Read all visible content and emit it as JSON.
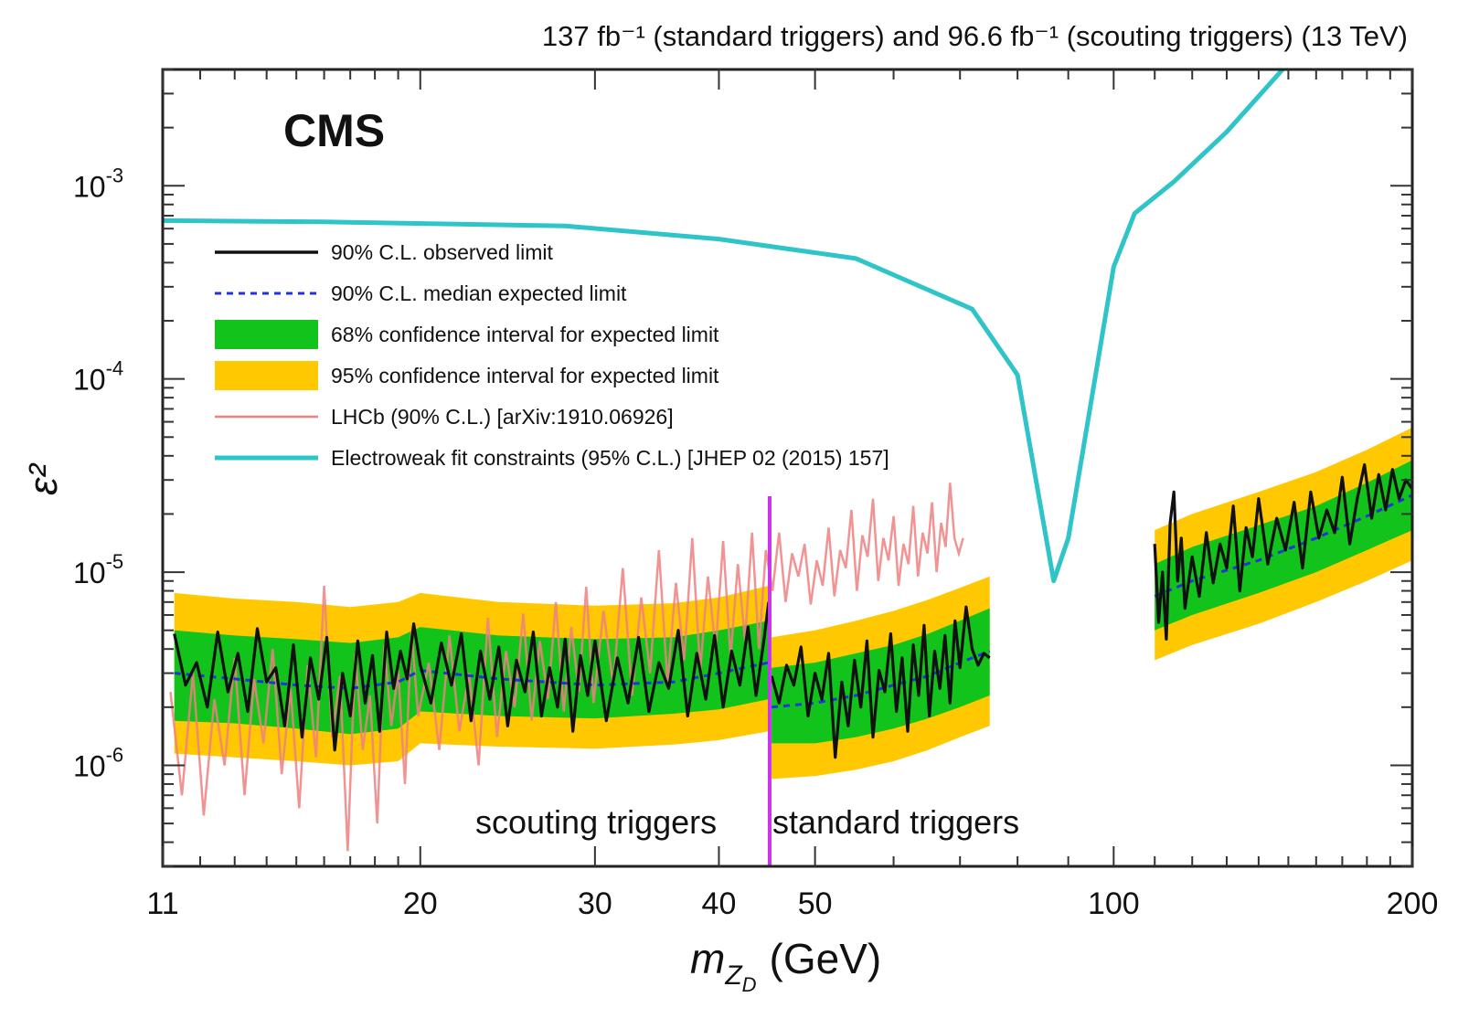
{
  "chart_data": {
    "type": "line",
    "title": "137 fb⁻¹ (standard triggers) and 96.6 fb⁻¹ (scouting triggers) (13 TeV)",
    "experiment_label": "CMS",
    "xlabel": "m_ZD (GeV)",
    "xlabel_parts": {
      "main": "m",
      "sub": "Z",
      "subsub": "D",
      "unit": "(GeV)"
    },
    "ylabel": "ε²",
    "x_scale": "log",
    "y_scale": "log",
    "xlim": [
      11,
      200
    ],
    "ylim": [
      3e-07,
      0.004
    ],
    "x_ticks": [
      11,
      20,
      30,
      40,
      50,
      100,
      200
    ],
    "x_tick_labels": [
      "11",
      "20",
      "30",
      "40",
      "50",
      "100",
      "200"
    ],
    "y_ticks": [
      1e-06,
      1e-05,
      0.0001,
      0.001
    ],
    "y_tick_labels": [
      {
        "base": "10",
        "exp": "-6"
      },
      {
        "base": "10",
        "exp": "-5"
      },
      {
        "base": "10",
        "exp": "-4"
      },
      {
        "base": "10",
        "exp": "-3"
      }
    ],
    "divider": {
      "x": 45,
      "color": "#cc33ee"
    },
    "region_labels": {
      "left": "scouting triggers",
      "right": "standard triggers"
    },
    "legend_position": "upper-left",
    "legend": [
      {
        "label": "90% C.L. observed limit",
        "kind": "line",
        "color": "#111111"
      },
      {
        "label": "90% C.L. median expected limit",
        "kind": "dashed",
        "color": "#2233dd"
      },
      {
        "label": "68% confidence interval for expected limit",
        "kind": "band",
        "color": "#11c31a"
      },
      {
        "label": "95% confidence interval for expected limit",
        "kind": "band",
        "color": "#ffc800"
      },
      {
        "label": "LHCb (90% C.L.) [arXiv:1910.06926]",
        "kind": "line",
        "color": "#f08080"
      },
      {
        "label": "Electroweak fit constraints (95% C.L.) [JHEP 02 (2015) 157]",
        "kind": "line",
        "color": "#2ec4c8"
      }
    ],
    "colors": {
      "observed": "#111111",
      "expected": "#2233dd",
      "band68": "#11c31a",
      "band95": "#ffc800",
      "lhcb": "#f08080",
      "ewk": "#2ec4c8"
    },
    "ewk_fit_constraint": {
      "x": [
        11,
        16,
        28,
        40,
        55,
        72,
        80,
        87,
        90,
        100,
        105,
        115,
        130,
        148
      ],
      "y": [
        0.00066,
        0.00065,
        0.00062,
        0.00053,
        0.00042,
        0.00023,
        0.000105,
        9e-06,
        1.5e-05,
        0.00038,
        0.00072,
        0.00105,
        0.0019,
        0.004
      ]
    },
    "expected_segments": [
      {
        "x": [
          11.3,
          13,
          15,
          17,
          19,
          20,
          24,
          30,
          36,
          40,
          44.9
        ],
        "y": [
          3e-06,
          2.8e-06,
          2.6e-06,
          2.5e-06,
          2.7e-06,
          3.1e-06,
          2.8e-06,
          2.6e-06,
          2.7e-06,
          3e-06,
          3.4e-06
        ],
        "band68_lo": [
          1.7e-06,
          1.65e-06,
          1.55e-06,
          1.45e-06,
          1.55e-06,
          1.9e-06,
          1.8e-06,
          1.75e-06,
          1.85e-06,
          1.95e-06,
          2.2e-06
        ],
        "band68_hi": [
          5e-06,
          4.7e-06,
          4.5e-06,
          4.3e-06,
          4.6e-06,
          5.2e-06,
          4.7e-06,
          4.5e-06,
          4.6e-06,
          5e-06,
          5.6e-06
        ],
        "band95_lo": [
          1.15e-06,
          1.1e-06,
          1.05e-06,
          1e-06,
          1.05e-06,
          1.3e-06,
          1.25e-06,
          1.22e-06,
          1.28e-06,
          1.35e-06,
          1.5e-06
        ],
        "band95_hi": [
          7.8e-06,
          7.3e-06,
          7e-06,
          6.6e-06,
          7e-06,
          7.8e-06,
          7e-06,
          6.7e-06,
          6.9e-06,
          7.4e-06,
          8.5e-06
        ]
      },
      {
        "x": [
          45.2,
          50,
          55,
          60,
          65,
          70,
          75
        ],
        "y": [
          2e-06,
          2.1e-06,
          2.3e-06,
          2.6e-06,
          2.9e-06,
          3.4e-06,
          3.9e-06
        ],
        "band68_lo": [
          1.3e-06,
          1.3e-06,
          1.4e-06,
          1.55e-06,
          1.75e-06,
          2e-06,
          2.3e-06
        ],
        "band68_hi": [
          3.2e-06,
          3.4e-06,
          3.8e-06,
          4.2e-06,
          4.8e-06,
          5.6e-06,
          6.5e-06
        ],
        "band95_lo": [
          8.5e-07,
          8.8e-07,
          9.5e-07,
          1.05e-06,
          1.2e-06,
          1.4e-06,
          1.6e-06
        ],
        "band95_hi": [
          4.6e-06,
          5e-06,
          5.6e-06,
          6.3e-06,
          7.2e-06,
          8.3e-06,
          9.5e-06
        ]
      },
      {
        "x": [
          110,
          120,
          140,
          160,
          180,
          200
        ],
        "y": [
          7.5e-06,
          9e-06,
          1.15e-05,
          1.5e-05,
          1.95e-05,
          2.5e-05
        ],
        "band68_lo": [
          5e-06,
          6e-06,
          7.8e-06,
          1e-05,
          1.3e-05,
          1.65e-05
        ],
        "band68_hi": [
          1.1e-05,
          1.35e-05,
          1.75e-05,
          2.2e-05,
          2.9e-05,
          3.8e-05
        ],
        "band95_lo": [
          3.5e-06,
          4.2e-06,
          5.4e-06,
          7e-06,
          9e-06,
          1.15e-05
        ],
        "band95_hi": [
          1.65e-05,
          2e-05,
          2.6e-05,
          3.3e-05,
          4.3e-05,
          5.6e-05
        ]
      }
    ],
    "observed_segments": [
      {
        "x": [
          11.3,
          11.6,
          11.9,
          12.2,
          12.5,
          12.8,
          13.1,
          13.4,
          13.7,
          14.0,
          14.3,
          14.6,
          14.9,
          15.2,
          15.5,
          15.8,
          16.1,
          16.4,
          16.7,
          17.0,
          17.3,
          17.6,
          17.9,
          18.2,
          18.5,
          18.8,
          19.1,
          19.4,
          19.7,
          20.0,
          20.5,
          21.0,
          21.5,
          22.0,
          22.5,
          23.0,
          23.5,
          24.0,
          24.5,
          25.0,
          25.5,
          26.0,
          26.5,
          27.0,
          27.5,
          28.0,
          28.5,
          29.0,
          29.5,
          30.0,
          30.8,
          31.6,
          32.4,
          33.2,
          34.0,
          34.8,
          35.6,
          36.4,
          37.2,
          38.0,
          38.8,
          39.6,
          40.4,
          41.2,
          42.0,
          42.8,
          43.6,
          44.4,
          44.9
        ],
        "y": [
          4.8e-06,
          2.6e-06,
          3.4e-06,
          2e-06,
          4.9e-06,
          2.4e-06,
          3.8e-06,
          1.9e-06,
          5.1e-06,
          2.7e-06,
          3.2e-06,
          1.6e-06,
          4.2e-06,
          1.4e-06,
          3.6e-06,
          2.2e-06,
          4.6e-06,
          1.2e-06,
          3e-06,
          1.8e-06,
          4.4e-06,
          2.1e-06,
          3.7e-06,
          1.5e-06,
          4.9e-06,
          2.5e-06,
          3.9e-06,
          2.8e-06,
          5.4e-06,
          3.3e-06,
          2.1e-06,
          4.3e-06,
          2.6e-06,
          4.8e-06,
          1.7e-06,
          3.9e-06,
          2.2e-06,
          4.1e-06,
          1.6e-06,
          3.5e-06,
          2.4e-06,
          4.9e-06,
          1.8e-06,
          3.2e-06,
          2e-06,
          4.5e-06,
          1.5e-06,
          3.7e-06,
          2.3e-06,
          4.4e-06,
          1.7e-06,
          3.6e-06,
          2.1e-06,
          4.6e-06,
          1.9e-06,
          3.4e-06,
          2.5e-06,
          5e-06,
          1.8e-06,
          3.8e-06,
          2.2e-06,
          4.7e-06,
          2e-06,
          3.9e-06,
          2.6e-06,
          5.2e-06,
          2.3e-06,
          4.4e-06,
          7e-06
        ]
      },
      {
        "x": [
          45.2,
          46.0,
          46.8,
          47.6,
          48.4,
          49.2,
          50.0,
          50.8,
          51.6,
          52.4,
          53.2,
          54.0,
          54.8,
          55.6,
          56.4,
          57.2,
          58.0,
          58.8,
          59.6,
          60.4,
          61.2,
          62.0,
          62.8,
          63.6,
          64.4,
          65.2,
          66.0,
          66.8,
          67.6,
          68.4,
          69.2,
          70.0,
          71.0,
          72.0,
          73.0,
          74.0,
          75.0
        ],
        "y": [
          2.9e-06,
          2.1e-06,
          3.3e-06,
          2.6e-06,
          4.1e-06,
          1.8e-06,
          3e-06,
          2.2e-06,
          3.8e-06,
          1.1e-06,
          2.7e-06,
          1.6e-06,
          3.5e-06,
          2e-06,
          4.4e-06,
          1.4e-06,
          3.1e-06,
          2.4e-06,
          4.8e-06,
          1.9e-06,
          3.6e-06,
          1.5e-06,
          4.2e-06,
          2.3e-06,
          5.3e-06,
          1.8e-06,
          3.9e-06,
          2.5e-06,
          4.7e-06,
          2.1e-06,
          5.6e-06,
          3.2e-06,
          6.6e-06,
          4e-06,
          3.3e-06,
          3.8e-06,
          3.6e-06
        ]
      },
      {
        "x": [
          110,
          111,
          112,
          113,
          114,
          115,
          116,
          117,
          118,
          120,
          122,
          124,
          126,
          128,
          130,
          132,
          134,
          136,
          138,
          140,
          143,
          146,
          149,
          152,
          155,
          158,
          161,
          164,
          167,
          170,
          173,
          176,
          179,
          182,
          185,
          188,
          191,
          194,
          197,
          200
        ],
        "y": [
          1.4e-05,
          5.5e-06,
          1e-05,
          4.5e-06,
          1.8e-05,
          2.6e-05,
          9e-06,
          1.5e-05,
          6.5e-06,
          1.2e-05,
          7.5e-06,
          1.6e-05,
          8.8e-06,
          1.4e-05,
          1.05e-05,
          2.2e-05,
          8e-06,
          1.7e-05,
          1.2e-05,
          2.4e-05,
          1.1e-05,
          1.9e-05,
          1.3e-05,
          2.3e-05,
          1.05e-05,
          2.6e-05,
          1.5e-05,
          2.1e-05,
          1.6e-05,
          3.1e-05,
          1.4e-05,
          2.4e-05,
          3.6e-05,
          1.9e-05,
          3.2e-05,
          2.1e-05,
          3.4e-05,
          2.4e-05,
          3e-05,
          2.7e-05
        ]
      }
    ],
    "lhcb_limit": {
      "x": [
        11.2,
        11.5,
        11.8,
        12.1,
        12.4,
        12.7,
        13.0,
        13.3,
        13.6,
        13.9,
        14.2,
        14.5,
        14.8,
        15.1,
        15.4,
        15.7,
        16.0,
        16.3,
        16.6,
        16.9,
        17.2,
        17.5,
        17.8,
        18.1,
        18.4,
        18.7,
        19.0,
        19.3,
        19.6,
        19.9,
        20.4,
        20.9,
        21.4,
        21.9,
        22.4,
        22.9,
        23.4,
        23.9,
        24.4,
        24.9,
        25.4,
        25.9,
        26.4,
        26.9,
        27.4,
        27.9,
        28.4,
        28.9,
        29.4,
        29.9,
        30.6,
        31.3,
        32.0,
        32.7,
        33.4,
        34.1,
        34.8,
        35.5,
        36.2,
        36.9,
        37.6,
        38.3,
        39.0,
        39.7,
        40.4,
        41.1,
        41.8,
        42.5,
        43.2,
        43.9,
        44.6,
        45.3,
        46.0,
        46.7,
        47.4,
        48.1,
        48.8,
        49.5,
        50.2,
        50.9,
        51.6,
        52.3,
        53.0,
        53.7,
        54.4,
        55.1,
        55.8,
        56.5,
        57.2,
        57.9,
        58.6,
        59.3,
        60.0,
        60.7,
        61.4,
        62.1,
        62.8,
        63.5,
        64.2,
        64.9,
        65.6,
        66.3,
        67.0,
        67.7,
        68.4,
        69.1,
        69.8,
        70.5
      ],
      "y": [
        2.4e-06,
        7e-07,
        3e-06,
        5.5e-07,
        2.2e-06,
        1e-06,
        3.6e-06,
        7e-07,
        2.8e-06,
        1.3e-06,
        4e-06,
        9e-07,
        2.5e-06,
        6e-07,
        3.3e-06,
        1.1e-06,
        8.5e-06,
        1.4e-06,
        2.9e-06,
        3.6e-07,
        3.8e-06,
        1.2e-06,
        2.3e-06,
        5e-07,
        4.2e-06,
        1.6e-06,
        3.1e-06,
        8e-07,
        5e-06,
        1.8e-06,
        3.4e-06,
        1.2e-06,
        4.7e-06,
        1.5e-06,
        3e-06,
        1e-06,
        5.8e-06,
        1.4e-06,
        3.9e-06,
        2e-06,
        6.1e-06,
        1.7e-06,
        4.4e-06,
        2.2e-06,
        7e-06,
        1.9e-06,
        5.2e-06,
        2.4e-06,
        8.4e-06,
        2.1e-06,
        6.3e-06,
        2.6e-06,
        1.05e-05,
        2.3e-06,
        7.4e-06,
        3e-06,
        1.3e-05,
        2.7e-06,
        8.8e-06,
        3.5e-06,
        1.5e-05,
        3.1e-06,
        9.5e-06,
        4e-06,
        1.45e-05,
        3.6e-06,
        1.1e-05,
        4.4e-06,
        1.6e-05,
        4e-06,
        1.3e-05,
        8e-06,
        1.6e-05,
        7e-06,
        1.25e-05,
        9.5e-06,
        1.4e-05,
        6.8e-06,
        1.15e-05,
        8.5e-06,
        1.7e-05,
        7.5e-06,
        1.3e-05,
        1.05e-05,
        2.1e-05,
        8e-06,
        1.55e-05,
        1.2e-05,
        2.4e-05,
        9e-06,
        1.5e-05,
        1.15e-05,
        1.95e-05,
        8.5e-06,
        1.4e-05,
        1.1e-05,
        2.2e-05,
        9.5e-06,
        1.6e-05,
        1.25e-05,
        2.3e-05,
        1e-05,
        1.8e-05,
        1.35e-05,
        2.9e-05,
        1.5e-05,
        1.25e-05,
        1.5e-05
      ]
    }
  }
}
